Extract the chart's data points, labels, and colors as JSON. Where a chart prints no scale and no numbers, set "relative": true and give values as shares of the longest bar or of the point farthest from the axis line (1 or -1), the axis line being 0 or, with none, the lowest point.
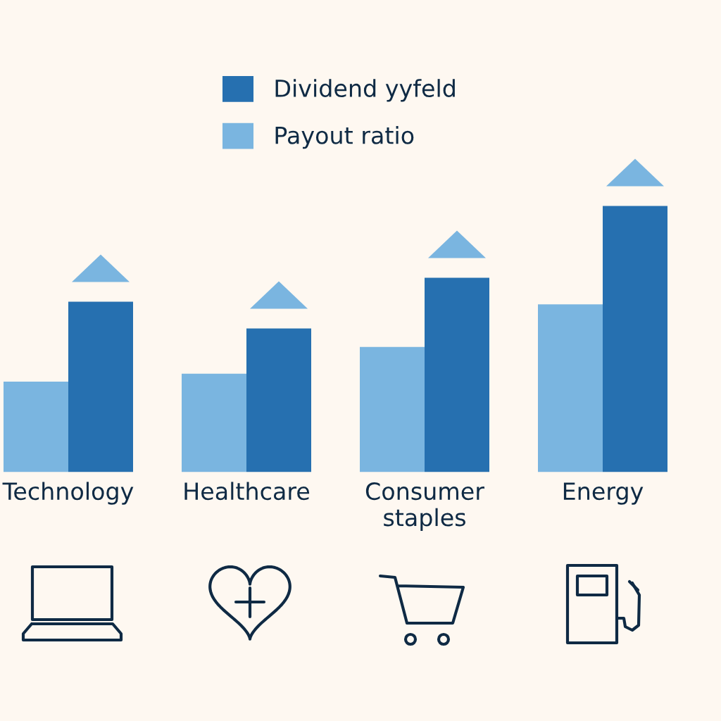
{
  "chart_data": {
    "type": "bar",
    "categories": [
      "Technology",
      "Healthcare",
      "Consumer\nstaples",
      "Energy"
    ],
    "relative": true,
    "series": [
      {
        "name": "Payout ratio",
        "color": "#7ab5e0",
        "values": [
          0.34,
          0.37,
          0.47,
          0.63
        ]
      },
      {
        "name": "Dividend yyfeld",
        "color": "#2670b0",
        "values": [
          0.64,
          0.54,
          0.73,
          1
        ]
      }
    ],
    "legend": "top"
  }
}
